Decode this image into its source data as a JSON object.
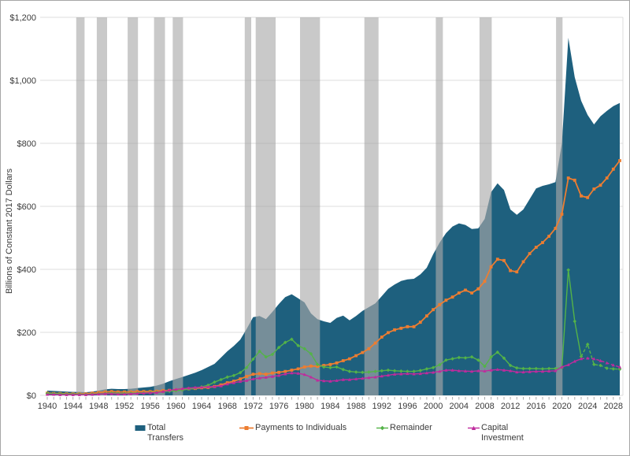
{
  "figure": {
    "background": "#ffffff",
    "border_color": "#a6a6a6"
  },
  "chart_data": {
    "type": "area",
    "title": "",
    "xlabel": "",
    "ylabel": "Billions of Constant 2017 Dollars",
    "start_year": 1940,
    "end_year": 2029,
    "ylim": [
      0,
      1200
    ],
    "grid": "horizontal",
    "grid_color": "#dcdcdc",
    "tick_color": "#ababab",
    "axis_text_color": "#3a3a3a",
    "legend_position": "bottom",
    "y_ticks": [
      {
        "value": 0,
        "label": "$0"
      },
      {
        "value": 200,
        "label": "$200"
      },
      {
        "value": 400,
        "label": "$400"
      },
      {
        "value": 600,
        "label": "$600"
      },
      {
        "value": 800,
        "label": "$800"
      },
      {
        "value": 1000,
        "label": "$1,000"
      },
      {
        "value": 1200,
        "label": "$1,200"
      }
    ],
    "x_tick_years": [
      1940,
      1944,
      1948,
      1952,
      1956,
      1960,
      1964,
      1968,
      1972,
      1976,
      1980,
      1984,
      1988,
      1992,
      1996,
      2000,
      2004,
      2008,
      2012,
      2016,
      2020,
      2024,
      2028
    ],
    "recession_bands": {
      "color": "#aaaaaa",
      "opacity": 0.63,
      "ranges": [
        [
          1944.5,
          1945.8
        ],
        [
          1947.7,
          1949.3
        ],
        [
          1952.5,
          1954.1
        ],
        [
          1956.6,
          1958.3
        ],
        [
          1959.5,
          1961.1
        ],
        [
          1970.7,
          1971.7
        ],
        [
          1972.4,
          1975.5
        ],
        [
          1979.3,
          1982.4
        ],
        [
          1989.3,
          1991.5
        ],
        [
          2000.4,
          2001.5
        ],
        [
          2007.2,
          2009.1
        ],
        [
          2019.1,
          2020.1
        ]
      ]
    },
    "series": [
      {
        "name": "Total Transfers",
        "type": "area",
        "color": "#1e607e",
        "values": [
          15,
          14,
          13,
          12,
          11,
          11,
          10,
          12,
          15,
          19,
          21,
          20,
          20,
          21,
          23,
          25,
          27,
          31,
          37,
          45,
          52,
          58,
          65,
          72,
          80,
          90,
          100,
          120,
          140,
          157,
          177,
          211,
          248,
          252,
          242,
          265,
          290,
          312,
          321,
          308,
          295,
          260,
          242,
          235,
          230,
          246,
          253,
          238,
          252,
          268,
          280,
          292,
          315,
          338,
          352,
          363,
          368,
          370,
          384,
          405,
          448,
          485,
          515,
          536,
          546,
          541,
          528,
          530,
          560,
          645,
          673,
          652,
          590,
          573,
          590,
          623,
          657,
          665,
          670,
          677,
          800,
          1135,
          1010,
          935,
          890,
          860,
          886,
          903,
          918,
          928
        ]
      },
      {
        "name": "Payments to Individuals",
        "type": "line",
        "color": "#ed7d31",
        "marker": "square",
        "width": 1.8,
        "values": [
          7,
          6,
          6,
          5,
          5,
          5,
          5,
          7,
          9,
          11,
          12,
          11,
          11,
          11,
          12,
          12,
          12,
          13,
          15,
          16,
          17,
          19,
          21,
          22,
          24,
          25,
          28,
          33,
          40,
          45,
          52,
          60,
          67,
          69,
          67,
          71,
          73,
          76,
          80,
          84,
          90,
          93,
          92,
          95,
          98,
          103,
          110,
          116,
          126,
          136,
          148,
          166,
          185,
          199,
          208,
          213,
          218,
          218,
          232,
          252,
          272,
          288,
          302,
          312,
          325,
          334,
          325,
          338,
          362,
          408,
          432,
          428,
          396,
          392,
          424,
          450,
          470,
          485,
          505,
          530,
          575,
          690,
          683,
          633,
          628,
          655,
          667,
          690,
          718,
          745
        ]
      },
      {
        "name": "Remainder",
        "type": "line",
        "color": "#54b348",
        "marker": "diamond",
        "width": 1.4,
        "dash_from_year": 2023,
        "values": [
          6,
          5,
          5,
          4,
          4,
          4,
          3,
          4,
          5,
          6,
          7,
          6,
          6,
          7,
          7,
          8,
          9,
          10,
          11,
          13,
          15,
          17,
          20,
          23,
          27,
          32,
          42,
          50,
          58,
          63,
          72,
          88,
          115,
          140,
          122,
          130,
          152,
          168,
          178,
          158,
          148,
          132,
          98,
          90,
          88,
          90,
          82,
          76,
          74,
          73,
          74,
          76,
          78,
          80,
          78,
          77,
          76,
          76,
          79,
          84,
          88,
          97,
          112,
          116,
          120,
          119,
          122,
          112,
          92,
          122,
          137,
          118,
          95,
          87,
          85,
          85,
          85,
          84,
          85,
          85,
          88,
          398,
          235,
          123,
          162,
          98,
          95,
          86,
          84,
          83
        ]
      },
      {
        "name": "Capital Investment",
        "type": "line",
        "color": "#bf2b9d",
        "marker": "triangle",
        "width": 1.4,
        "dash_from_year": 2023,
        "values": [
          3,
          3,
          2,
          2,
          2,
          2,
          2,
          3,
          4,
          5,
          5,
          4,
          4,
          5,
          6,
          7,
          8,
          9,
          12,
          16,
          19,
          21,
          23,
          25,
          26,
          27,
          28,
          30,
          36,
          40,
          44,
          47,
          52,
          55,
          57,
          60,
          63,
          68,
          71,
          70,
          66,
          58,
          48,
          46,
          45,
          47,
          50,
          50,
          52,
          54,
          56,
          58,
          61,
          64,
          67,
          68,
          69,
          68,
          69,
          71,
          73,
          76,
          80,
          80,
          78,
          77,
          76,
          78,
          77,
          80,
          82,
          80,
          78,
          74,
          74,
          75,
          76,
          76,
          77,
          78,
          90,
          97,
          108,
          116,
          118,
          116,
          110,
          103,
          96,
          90
        ]
      }
    ]
  }
}
